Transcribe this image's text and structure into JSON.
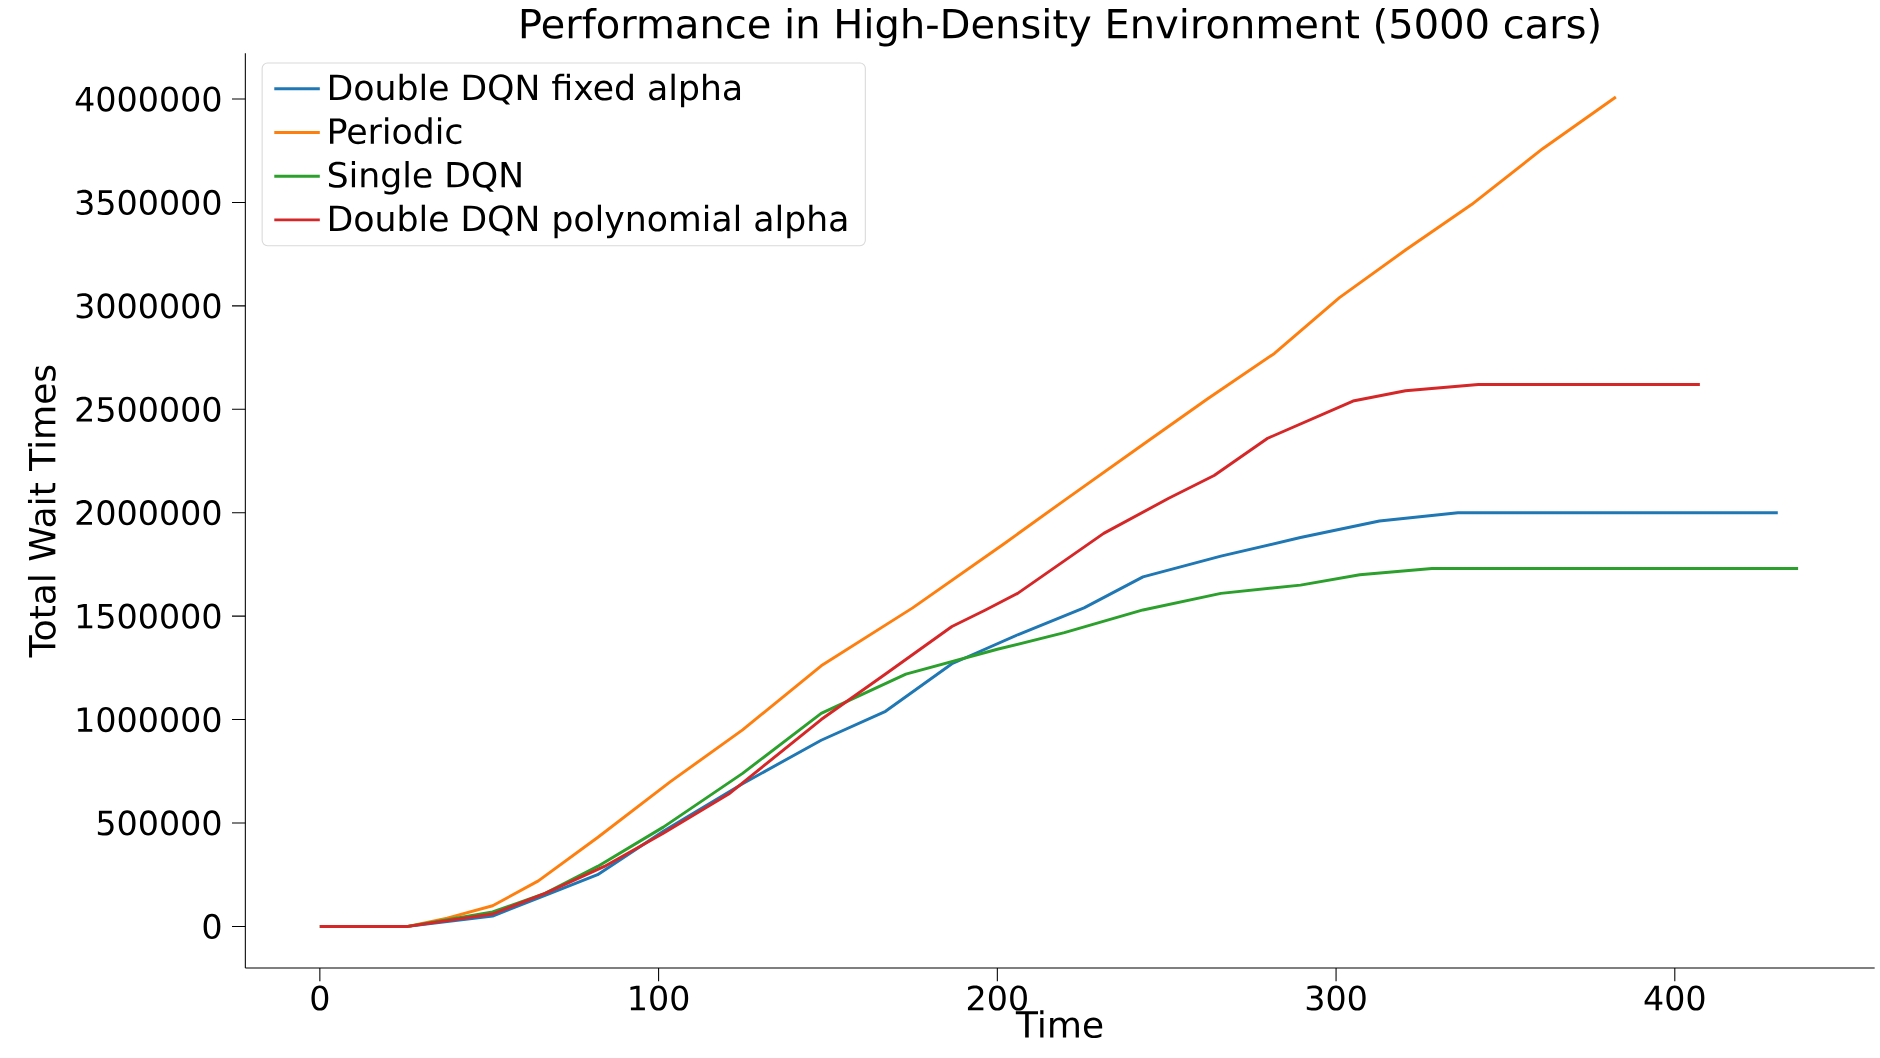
{
  "chart_data": {
    "type": "line",
    "title": "Performance in High-Density Environment (5000 cars)",
    "xlabel": "Time",
    "ylabel": "Total Wait Times",
    "xlim": [
      -22,
      459
    ],
    "ylim": [
      -201000,
      4221000
    ],
    "xticks": [
      0,
      100,
      200,
      300,
      400
    ],
    "yticks": [
      0,
      500000,
      1000000,
      1500000,
      2000000,
      2500000,
      3000000,
      3500000,
      4000000
    ],
    "grid": false,
    "legend": "top left",
    "marker": "none",
    "line_style": "solid",
    "series": [
      {
        "name": "Double DQN fixed alpha",
        "color": "#1f77b4",
        "x": [
          0,
          26,
          51,
          66.5,
          82,
          101.4,
          124.8,
          148,
          167,
          186.6,
          206,
          225.6,
          243,
          266,
          289.5,
          312.8,
          336,
          430.4
        ],
        "values": [
          0,
          0,
          50000,
          150000,
          250000,
          460000,
          690000,
          900000,
          1040000,
          1270000,
          1410000,
          1540000,
          1690000,
          1790000,
          1880000,
          1960000,
          2000000,
          2000000
        ]
      },
      {
        "name": "Periodic",
        "color": "#ff7f0e",
        "x": [
          0,
          26,
          37.6,
          51,
          64.5,
          82,
          103.5,
          124.8,
          148,
          175,
          202,
          219.8,
          243,
          262,
          281.8,
          301,
          320.5,
          340,
          361,
          382.6
        ],
        "values": [
          0,
          0,
          40000,
          100000,
          220000,
          430000,
          700000,
          950000,
          1260000,
          1540000,
          1850000,
          2060000,
          2330000,
          2550000,
          2770000,
          3040000,
          3270000,
          3490000,
          3760000,
          4010000
        ]
      },
      {
        "name": "Single DQN",
        "color": "#2ca02c",
        "x": [
          0,
          26,
          51,
          66.5,
          82,
          101.4,
          124.8,
          148,
          173,
          200,
          219.8,
          243,
          266,
          289.5,
          307,
          328.3,
          436.4
        ],
        "values": [
          0,
          0,
          70000,
          160000,
          290000,
          480000,
          740000,
          1030000,
          1220000,
          1340000,
          1420000,
          1530000,
          1610000,
          1650000,
          1700000,
          1730000,
          1730000
        ]
      },
      {
        "name": "Double DQN polynomial alpha",
        "color": "#d62728",
        "x": [
          0,
          26,
          51,
          66.5,
          84,
          101.4,
          120.7,
          148,
          167,
          186.6,
          196.5,
          206,
          231.4,
          250.6,
          264,
          279.8,
          305,
          320.5,
          342,
          407.4
        ],
        "values": [
          0,
          0,
          60000,
          160000,
          290000,
          450000,
          640000,
          1000000,
          1220000,
          1450000,
          1530000,
          1610000,
          1900000,
          2070000,
          2180000,
          2360000,
          2540000,
          2590000,
          2620000,
          2620000
        ]
      }
    ]
  }
}
